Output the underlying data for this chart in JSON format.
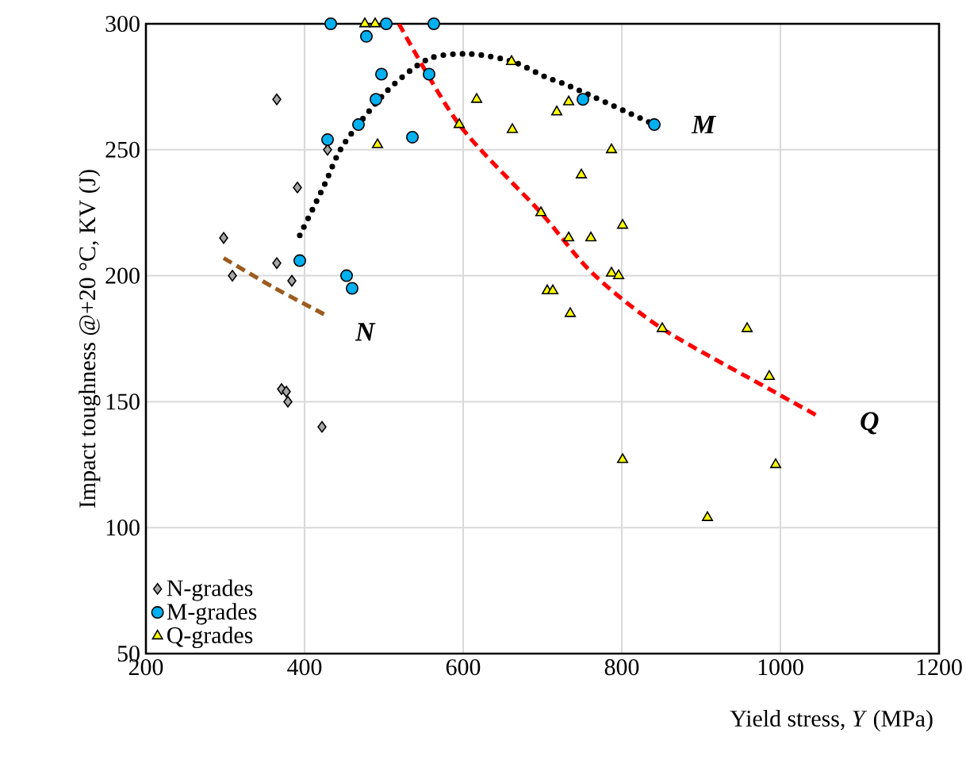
{
  "chart_data": {
    "type": "scatter",
    "xlabel": "Yield stress, *Y* (MPa)",
    "ylabel": "Impact toughness @+20 °C, KV (J)",
    "xlim": [
      200,
      1200
    ],
    "ylim": [
      50,
      300
    ],
    "xticks": [
      200,
      400,
      600,
      800,
      1000,
      1200
    ],
    "yticks": [
      50,
      100,
      150,
      200,
      250,
      300
    ],
    "grid": true,
    "legend": "bottom left",
    "series": [
      {
        "name": "N-grades",
        "marker": "diamond",
        "color": "#a6a6a6",
        "x": [
          298,
          309,
          365,
          365,
          371,
          377,
          379,
          384,
          391,
          422,
          429
        ],
        "values": [
          215,
          200,
          270,
          205,
          155,
          154,
          150,
          198,
          235,
          140,
          250
        ]
      },
      {
        "name": "M-grades",
        "marker": "circle",
        "color": "#00b0f0",
        "x": [
          394,
          429,
          433,
          453,
          460,
          468,
          478,
          490,
          497,
          503,
          536,
          557,
          563,
          751,
          841
        ],
        "values": [
          206,
          254,
          300,
          200,
          195,
          260,
          295,
          270,
          280,
          300,
          255,
          280,
          300,
          270,
          260
        ]
      },
      {
        "name": "Q-grades",
        "marker": "triangle",
        "color": "#ffff00",
        "x": [
          476,
          489,
          492,
          595,
          617,
          661,
          662,
          698,
          706,
          713,
          718,
          733,
          733,
          735,
          749,
          761,
          787,
          787,
          796,
          801,
          801,
          851,
          908,
          958,
          986,
          994
        ],
        "values": [
          300,
          300,
          252,
          260,
          270,
          285,
          258,
          225,
          194,
          194,
          265,
          269,
          215,
          185,
          240,
          215,
          250,
          201,
          200,
          220,
          127,
          179,
          104,
          179,
          160,
          125
        ]
      },
      {
        "type": "line",
        "line_style": "dashed",
        "marker": "none",
        "color": "#9c5b1e",
        "x": [
          298,
          363,
          429
        ],
        "values": [
          207,
          195,
          184
        ]
      },
      {
        "type": "line",
        "line_style": "dotted",
        "marker": "none",
        "color": "#000000",
        "x": [
          394,
          425,
          449,
          503,
          556,
          609,
          662,
          703,
          736,
          841
        ],
        "values": [
          216,
          236,
          252,
          273,
          286,
          288,
          285,
          279,
          275,
          260
        ]
      },
      {
        "type": "line",
        "line_style": "dashed",
        "marker": "none",
        "color": "#ff0000",
        "x": [
          519,
          595,
          698,
          763,
          851,
          986,
          1049
        ],
        "values": [
          300,
          260,
          225,
          201,
          179,
          155,
          144
        ]
      }
    ],
    "annotations": [
      "N",
      "M",
      "Q"
    ]
  }
}
